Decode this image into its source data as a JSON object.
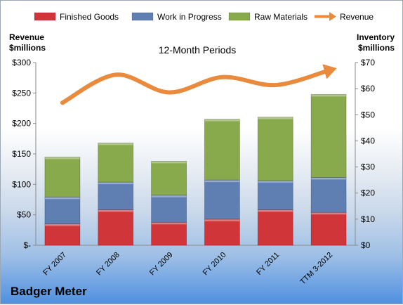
{
  "company": "Badger Meter",
  "chart_data": {
    "type": "bar",
    "subtype": "stacked bar with line overlay",
    "title": "12-Month Periods",
    "categories": [
      "FY 2007",
      "FY 2008",
      "FY 2009",
      "FY 2010",
      "FY 2011",
      "TTM 3-2012"
    ],
    "y_left_label": [
      "Revenue",
      "$millions"
    ],
    "y_right_label": [
      "Inventory",
      "$millions"
    ],
    "y_left_ticks": [
      "$-",
      "$50",
      "$100",
      "$150",
      "$200",
      "$250",
      "$300"
    ],
    "y_right_ticks": [
      "$0",
      "$10",
      "$20",
      "$30",
      "$40",
      "$50",
      "$60",
      "$70"
    ],
    "ylim_left": [
      0,
      300
    ],
    "ylim_right": [
      0,
      70
    ],
    "legend_position": "top",
    "grid": false,
    "bar_axis": "right",
    "series": [
      {
        "name": "Finished Goods",
        "color": "#d0353a",
        "values": [
          8.2,
          13.6,
          8.8,
          10.0,
          13.6,
          12.6
        ]
      },
      {
        "name": "Work in Progress",
        "color": "#5f7fb3",
        "values": [
          10.3,
          10.6,
          10.4,
          15.0,
          11.2,
          13.4
        ]
      },
      {
        "name": "Raw Materials",
        "color": "#88a94c",
        "values": [
          15.3,
          15.0,
          13.0,
          23.3,
          24.3,
          31.8
        ]
      }
    ],
    "line": {
      "name": "Revenue",
      "color": "#e98a3c",
      "axis": "left",
      "values": [
        234,
        280,
        251,
        276,
        263,
        287
      ]
    }
  }
}
